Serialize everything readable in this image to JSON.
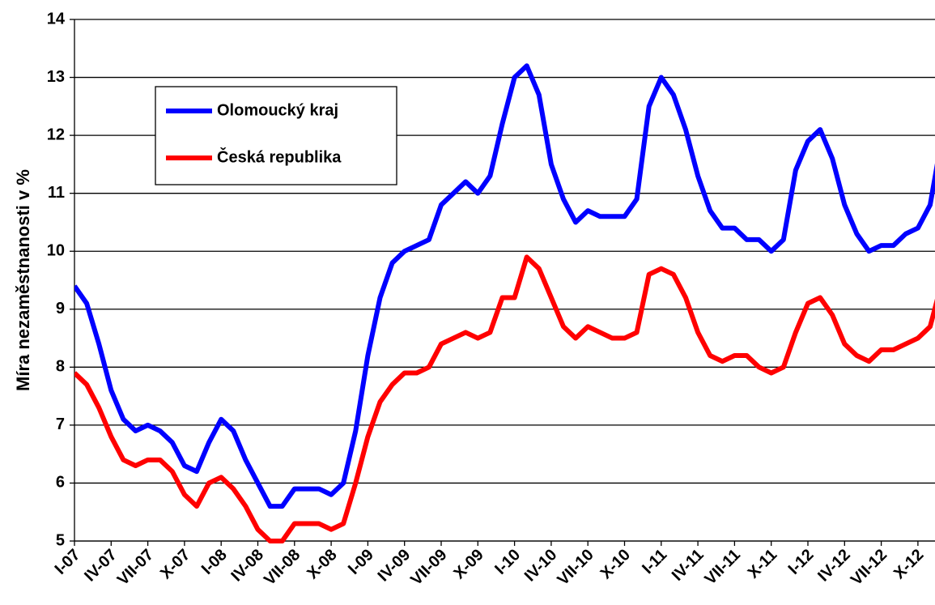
{
  "chart_data": {
    "type": "line",
    "y_label": "Míra nezaměstnanosti v %",
    "categories": [
      "I-07",
      null,
      null,
      "IV-07",
      null,
      null,
      "VII-07",
      null,
      null,
      "X-07",
      null,
      null,
      "I-08",
      null,
      null,
      "IV-08",
      null,
      null,
      "VII-08",
      null,
      null,
      "X-08",
      null,
      null,
      "I-09",
      null,
      null,
      "IV-09",
      null,
      null,
      "VII-09",
      null,
      null,
      "X-09",
      null,
      null,
      "I-10",
      null,
      null,
      "IV-10",
      null,
      null,
      "VII-10",
      null,
      null,
      "X-10",
      null,
      null,
      "I-11",
      null,
      null,
      "IV-11",
      null,
      null,
      "VII-11",
      null,
      null,
      "X-11",
      null,
      null,
      "I-12",
      null,
      null,
      "IV-12",
      null,
      null,
      "VII-12",
      null,
      null,
      "X-12",
      null,
      null
    ],
    "series": [
      {
        "name": "Olomoucký kraj",
        "color": "#0000ff",
        "values": [
          9.4,
          9.1,
          8.4,
          7.6,
          7.1,
          6.9,
          7.0,
          6.9,
          6.7,
          6.3,
          6.2,
          6.7,
          7.1,
          6.9,
          6.4,
          6.0,
          5.6,
          5.6,
          5.9,
          5.9,
          5.9,
          5.8,
          6.0,
          6.9,
          8.2,
          9.2,
          9.8,
          10.0,
          10.1,
          10.2,
          10.8,
          11.0,
          11.2,
          11.0,
          11.3,
          12.2,
          13.0,
          13.2,
          12.7,
          11.5,
          10.9,
          10.5,
          10.7,
          10.6,
          10.6,
          10.6,
          10.9,
          12.5,
          13.0,
          12.7,
          12.1,
          11.3,
          10.7,
          10.4,
          10.4,
          10.2,
          10.2,
          10.0,
          10.2,
          11.4,
          11.9,
          12.1,
          11.6,
          10.8,
          10.3,
          10.0,
          10.1,
          10.1,
          10.3,
          10.4,
          10.8,
          12.0
        ]
      },
      {
        "name": "Česká republika",
        "color": "#ff0000",
        "values": [
          7.9,
          7.7,
          7.3,
          6.8,
          6.4,
          6.3,
          6.4,
          6.4,
          6.2,
          5.8,
          5.6,
          6.0,
          6.1,
          5.9,
          5.6,
          5.2,
          5.0,
          5.0,
          5.3,
          5.3,
          5.3,
          5.2,
          5.3,
          6.0,
          6.8,
          7.4,
          7.7,
          7.9,
          7.9,
          8.0,
          8.4,
          8.5,
          8.6,
          8.5,
          8.6,
          9.2,
          9.2,
          9.9,
          9.7,
          9.2,
          8.7,
          8.5,
          8.7,
          8.6,
          8.5,
          8.5,
          8.6,
          9.6,
          9.7,
          9.6,
          9.2,
          8.6,
          8.2,
          8.1,
          8.2,
          8.2,
          8.0,
          7.9,
          8.0,
          8.6,
          9.1,
          9.2,
          8.9,
          8.4,
          8.2,
          8.1,
          8.3,
          8.3,
          8.4,
          8.5,
          8.7,
          9.5
        ]
      }
    ],
    "ylim": [
      5,
      14
    ],
    "yticks": [
      5,
      6,
      7,
      8,
      9,
      10,
      11,
      12,
      13,
      14
    ],
    "grid": true
  }
}
